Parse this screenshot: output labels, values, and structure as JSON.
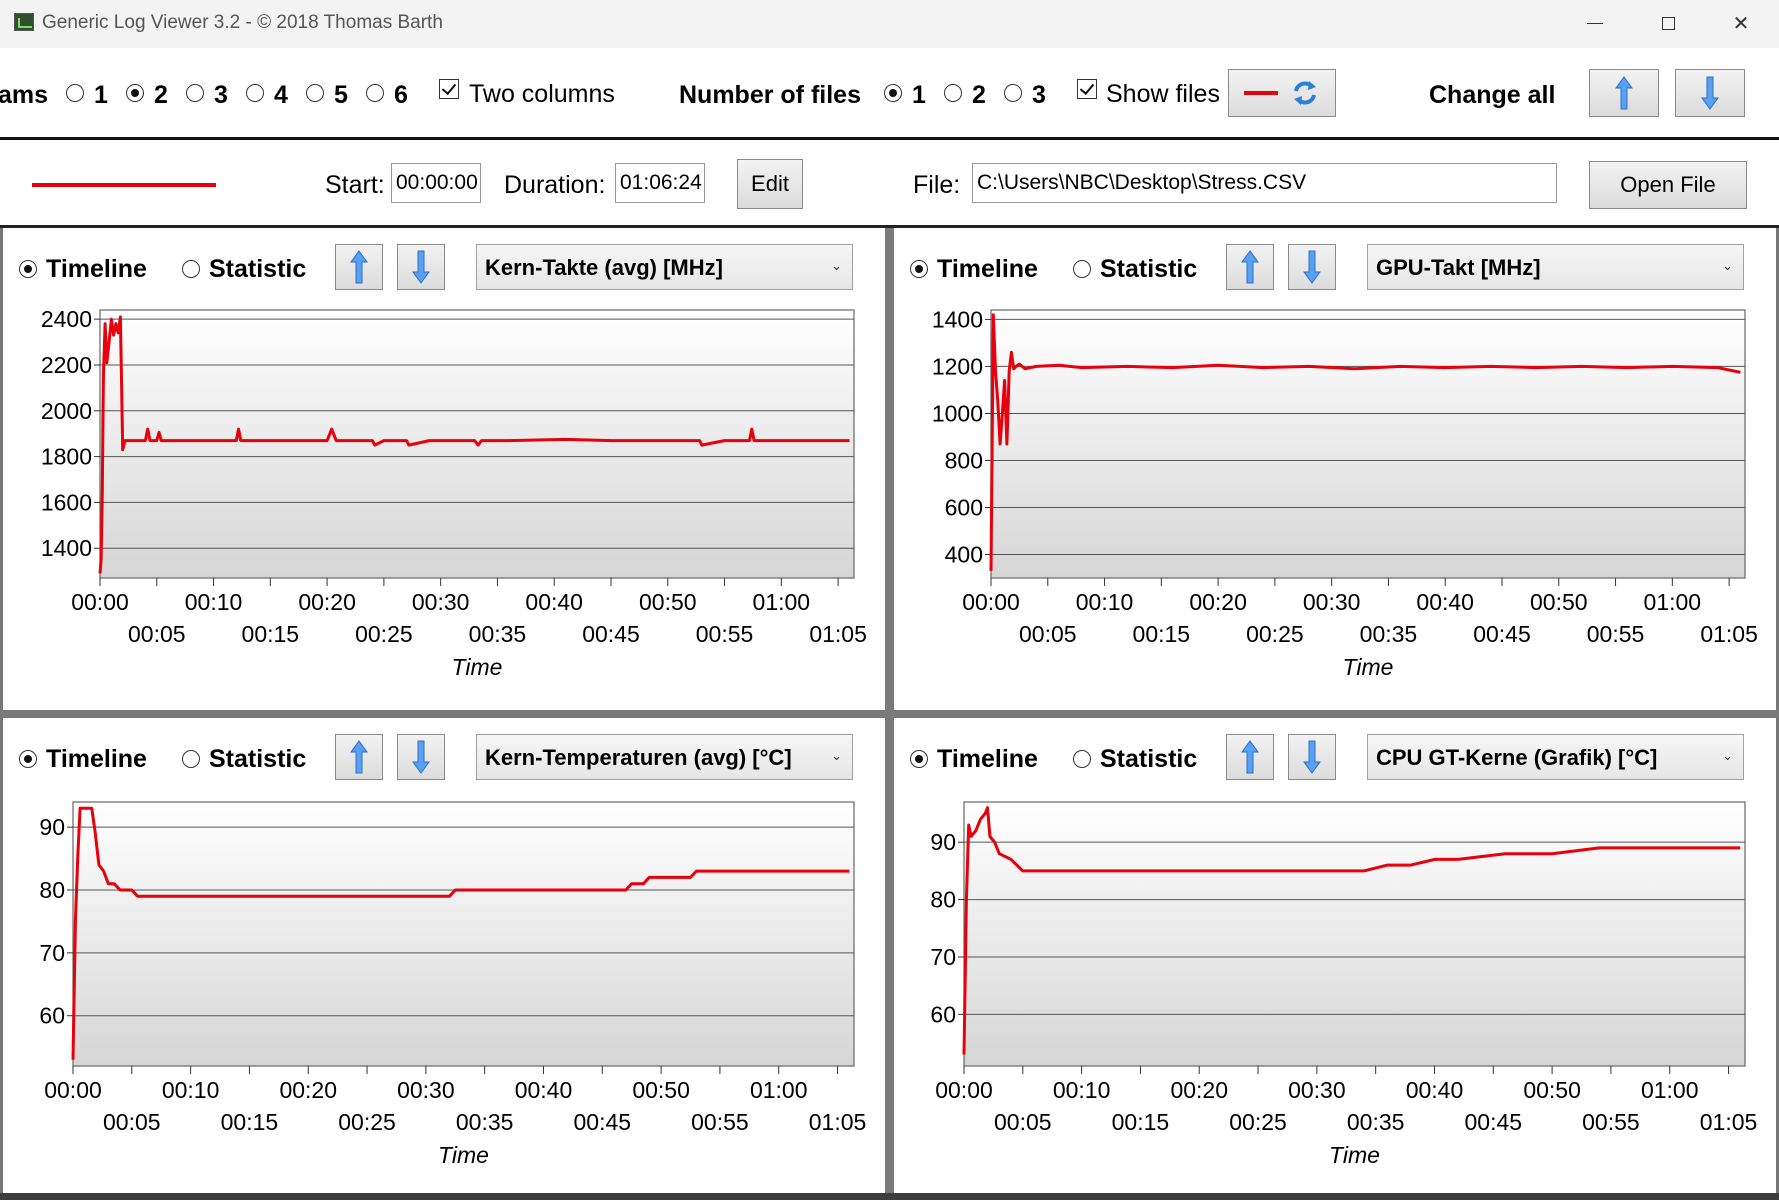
{
  "window": {
    "title": "Generic Log Viewer 3.2 - © 2018 Thomas Barth",
    "icon": "monitor-icon"
  },
  "toolbar": {
    "diagrams_label": "ams",
    "diagram_counts": [
      "1",
      "2",
      "3",
      "4",
      "5",
      "6"
    ],
    "diagram_selected": "2",
    "two_columns_label": "Two columns",
    "two_columns_checked": true,
    "number_of_files_label": "Number of files",
    "file_counts": [
      "1",
      "2",
      "3"
    ],
    "files_selected": "1",
    "show_files_label": "Show files",
    "show_files_checked": true,
    "change_all_label": "Change all",
    "accent_color": "#e8000b"
  },
  "file_row": {
    "start_label": "Start:",
    "start_value": "00:00:00",
    "duration_label": "Duration:",
    "duration_value": "01:06:24",
    "edit_label": "Edit",
    "file_label": "File:",
    "file_value": "C:\\Users\\NBC\\Desktop\\Stress.CSV",
    "open_file_label": "Open File",
    "line_color": "#e8000b"
  },
  "panels": [
    {
      "timeline_label": "Timeline",
      "statistic_label": "Statistic",
      "mode_selected": "Timeline",
      "sensor": "Kern-Takte (avg) [MHz]"
    },
    {
      "timeline_label": "Timeline",
      "statistic_label": "Statistic",
      "mode_selected": "Timeline",
      "sensor": "GPU-Takt [MHz]"
    },
    {
      "timeline_label": "Timeline",
      "statistic_label": "Statistic",
      "mode_selected": "Timeline",
      "sensor": "Kern-Temperaturen (avg) [°C]"
    },
    {
      "timeline_label": "Timeline",
      "statistic_label": "Statistic",
      "mode_selected": "Timeline",
      "sensor": "CPU GT-Kerne (Grafik) [°C]"
    }
  ],
  "chart_data": [
    {
      "type": "line",
      "xlabel": "Time",
      "ylabel": "",
      "x_ticks_upper": [
        "00:00",
        "00:10",
        "00:20",
        "00:30",
        "00:40",
        "00:50",
        "01:00"
      ],
      "x_ticks_lower": [
        "00:05",
        "00:15",
        "00:25",
        "00:35",
        "00:45",
        "00:55",
        "01:05"
      ],
      "xlim": [
        0,
        66.4
      ],
      "y_ticks": [
        "2400",
        "2200",
        "2000",
        "1800",
        "1600",
        "1400"
      ],
      "ylim": [
        1270,
        2440
      ],
      "color": "#e8000b",
      "series": [
        {
          "x": [
            0,
            0.1,
            0.2,
            0.3,
            0.45,
            0.6,
            0.8,
            1.0,
            1.2,
            1.4,
            1.6,
            1.8,
            2.0,
            2.2,
            3,
            4,
            4.2,
            4.4,
            5,
            5.2,
            5.4,
            6,
            8,
            10,
            12,
            12.2,
            12.4,
            16,
            20,
            20.4,
            20.8,
            22,
            24,
            24.2,
            25,
            27,
            27.2,
            29,
            33,
            33.3,
            33.6,
            36,
            41,
            45,
            50,
            52.8,
            53,
            55,
            57.2,
            57.4,
            57.6,
            61,
            66
          ],
          "y": [
            1290,
            1350,
            1650,
            2150,
            2380,
            2210,
            2300,
            2400,
            2330,
            2380,
            2340,
            2410,
            1830,
            1870,
            1870,
            1870,
            1920,
            1870,
            1870,
            1905,
            1870,
            1870,
            1870,
            1870,
            1870,
            1920,
            1870,
            1870,
            1870,
            1920,
            1870,
            1870,
            1870,
            1850,
            1870,
            1870,
            1850,
            1870,
            1870,
            1850,
            1870,
            1870,
            1875,
            1870,
            1870,
            1870,
            1850,
            1870,
            1870,
            1920,
            1870,
            1870,
            1870
          ]
        }
      ]
    },
    {
      "type": "line",
      "xlabel": "Time",
      "ylabel": "",
      "x_ticks_upper": [
        "00:00",
        "00:10",
        "00:20",
        "00:30",
        "00:40",
        "00:50",
        "01:00"
      ],
      "x_ticks_lower": [
        "00:05",
        "00:15",
        "00:25",
        "00:35",
        "00:45",
        "00:55",
        "01:05"
      ],
      "xlim": [
        0,
        66.4
      ],
      "y_ticks": [
        "1400",
        "1200",
        "1000",
        "800",
        "600",
        "400"
      ],
      "ylim": [
        300,
        1440
      ],
      "color": "#e8000b",
      "series": [
        {
          "x": [
            0,
            0.2,
            0.4,
            0.6,
            0.8,
            1.0,
            1.2,
            1.4,
            1.6,
            1.8,
            2.0,
            2.2,
            2.5,
            3,
            4,
            6,
            8,
            12,
            16,
            20,
            24,
            28,
            32,
            36,
            40,
            44,
            48,
            52,
            56,
            60,
            64,
            66
          ],
          "y": [
            330,
            1420,
            1180,
            1050,
            870,
            1000,
            1140,
            870,
            1180,
            1260,
            1190,
            1200,
            1210,
            1190,
            1200,
            1205,
            1195,
            1200,
            1195,
            1205,
            1195,
            1200,
            1190,
            1200,
            1195,
            1200,
            1195,
            1200,
            1195,
            1200,
            1195,
            1175
          ]
        }
      ]
    },
    {
      "type": "line",
      "xlabel": "Time",
      "ylabel": "",
      "x_ticks_upper": [
        "00:00",
        "00:10",
        "00:20",
        "00:30",
        "00:40",
        "00:50",
        "01:00"
      ],
      "x_ticks_lower": [
        "00:05",
        "00:15",
        "00:25",
        "00:35",
        "00:45",
        "00:55",
        "01:05"
      ],
      "xlim": [
        0,
        66.4
      ],
      "y_ticks": [
        "90",
        "80",
        "70",
        "60"
      ],
      "ylim": [
        52,
        94
      ],
      "color": "#e8000b",
      "series": [
        {
          "x": [
            0,
            0.2,
            0.4,
            0.6,
            1.6,
            1.9,
            2.2,
            2.6,
            3,
            3.5,
            4,
            5,
            5.5,
            6,
            10,
            15,
            20,
            23,
            32,
            32.5,
            34,
            40,
            44,
            47,
            47.5,
            48.5,
            49,
            51,
            52.5,
            53,
            55,
            57,
            58,
            66
          ],
          "y": [
            53,
            75,
            85,
            93,
            93,
            89,
            84,
            83,
            81,
            81,
            80,
            80,
            79,
            79,
            79,
            79,
            79,
            79,
            79,
            80,
            80,
            80,
            80,
            80,
            81,
            81,
            82,
            82,
            82,
            83,
            83,
            83,
            83,
            83
          ]
        }
      ]
    },
    {
      "type": "line",
      "xlabel": "Time",
      "ylabel": "",
      "x_ticks_upper": [
        "00:00",
        "00:10",
        "00:20",
        "00:30",
        "00:40",
        "00:50",
        "01:00"
      ],
      "x_ticks_lower": [
        "00:05",
        "00:15",
        "00:25",
        "00:35",
        "00:45",
        "00:55",
        "01:05"
      ],
      "xlim": [
        0,
        66.4
      ],
      "y_ticks": [
        "90",
        "80",
        "70",
        "60"
      ],
      "ylim": [
        51,
        97
      ],
      "color": "#e8000b",
      "series": [
        {
          "x": [
            0,
            0.2,
            0.4,
            0.6,
            1.0,
            1.4,
            1.8,
            2.0,
            2.2,
            2.6,
            3,
            4,
            5,
            6,
            10,
            14,
            18,
            22,
            26,
            30,
            34,
            36,
            38,
            40,
            42,
            46,
            50,
            54,
            58,
            62,
            66
          ],
          "y": [
            53,
            80,
            93,
            91,
            92,
            94,
            95,
            96,
            91,
            90,
            88,
            87,
            85,
            85,
            85,
            85,
            85,
            85,
            85,
            85,
            85,
            86,
            86,
            87,
            87,
            88,
            88,
            89,
            89,
            89,
            89
          ]
        }
      ]
    }
  ]
}
